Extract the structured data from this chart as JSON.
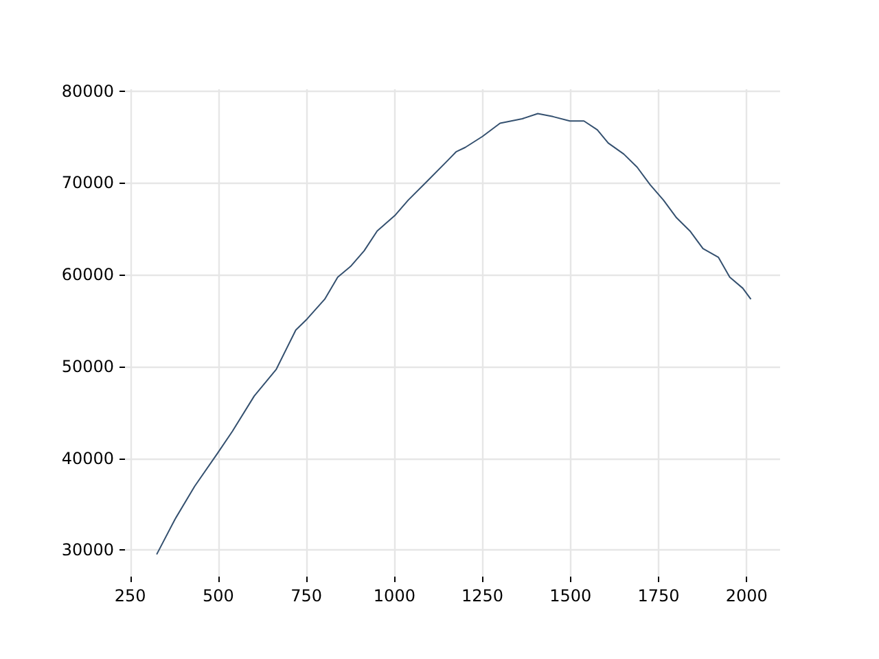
{
  "chart_data": {
    "type": "line",
    "x": [
      325,
      377,
      433,
      497,
      540,
      602,
      664,
      720,
      752,
      802,
      839,
      876,
      914,
      951,
      1001,
      1039,
      1089,
      1151,
      1175,
      1201,
      1250,
      1300,
      1363,
      1407,
      1450,
      1498,
      1538,
      1576,
      1607,
      1651,
      1689,
      1726,
      1764,
      1801,
      1839,
      1876,
      1920,
      1952,
      1989,
      2012
    ],
    "series": [
      {
        "color": "#34506f",
        "values": [
          29520,
          33350,
          36950,
          40500,
          42940,
          46780,
          49650,
          53970,
          55170,
          57320,
          59720,
          60920,
          62600,
          64760,
          66430,
          68110,
          70030,
          72430,
          73380,
          73860,
          75060,
          76500,
          76980,
          77550,
          77220,
          76740,
          76740,
          75780,
          74340,
          73140,
          71710,
          69790,
          68110,
          66190,
          64760,
          62840,
          61880,
          59720,
          58520,
          57320
        ]
      }
    ],
    "xlim": [
      235,
      2095
    ],
    "ylim": [
      27100,
      80200
    ],
    "xticks": [
      250,
      500,
      750,
      1000,
      1250,
      1500,
      1750,
      2000
    ],
    "yticks": [
      30000,
      40000,
      50000,
      60000,
      70000,
      80000
    ],
    "grid": true,
    "marker": "none",
    "line_style": "solid"
  }
}
